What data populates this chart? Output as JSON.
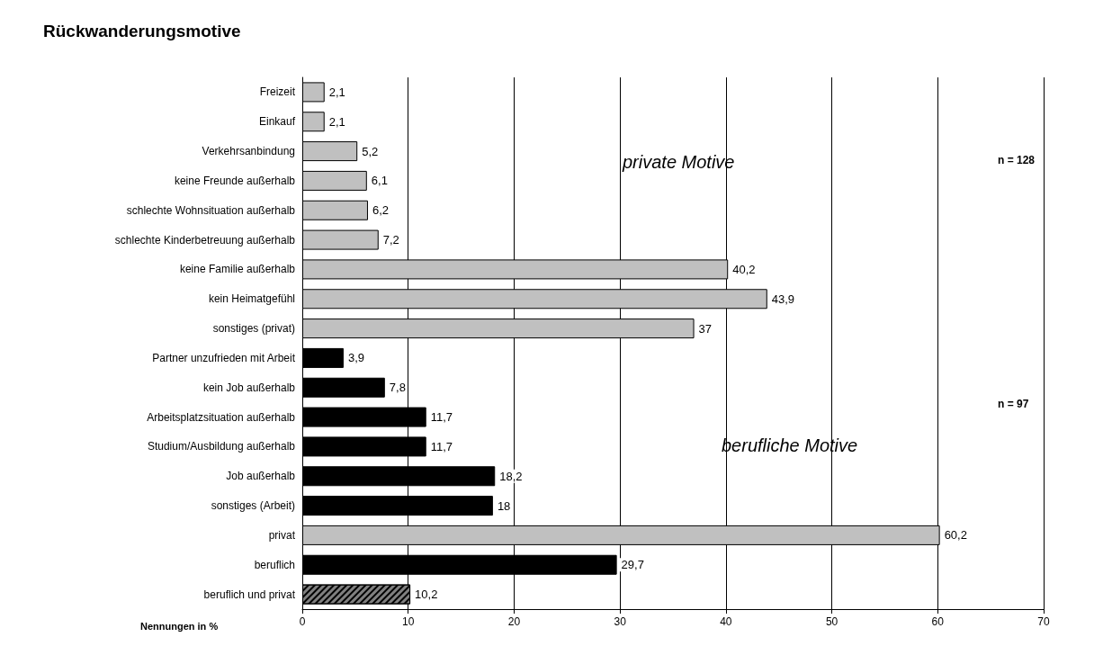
{
  "chart_data": {
    "type": "bar",
    "orientation": "horizontal",
    "title": "Rückwanderungsmotive",
    "xlabel": "Nennungen in %",
    "categories": [
      "Freizeit",
      "Einkauf",
      "Verkehrsanbindung",
      "keine Freunde außerhalb",
      "schlechte Wohnsituation außerhalb",
      "schlechte Kinderbetreuung außerhalb",
      "keine Familie außerhalb",
      "kein Heimatgefühl",
      "sonstiges (privat)",
      "Partner unzufrieden mit Arbeit",
      "kein Job außerhalb",
      "Arbeitsplatzsituation außerhalb",
      "Studium/Ausbildung außerhalb",
      "Job außerhalb",
      "sonstiges (Arbeit)",
      "privat",
      "beruflich",
      "beruflich und privat"
    ],
    "values": [
      2.1,
      2.1,
      5.2,
      6.1,
      6.2,
      7.2,
      40.2,
      43.9,
      37,
      3.9,
      7.8,
      11.7,
      11.7,
      18.2,
      18,
      60.2,
      29.7,
      10.2
    ],
    "value_labels": [
      "2,1",
      "2,1",
      "5,2",
      "6,1",
      "6,2",
      "7,2",
      "40,2",
      "43,9",
      "37",
      "3,9",
      "7,8",
      "11,7",
      "11,7",
      "18,2",
      "18",
      "60,2",
      "29,7",
      "10,2"
    ],
    "colors": [
      "#c0c0c0",
      "#c0c0c0",
      "#c0c0c0",
      "#c0c0c0",
      "#c0c0c0",
      "#c0c0c0",
      "#c0c0c0",
      "#c0c0c0",
      "#c0c0c0",
      "#000000",
      "#000000",
      "#000000",
      "#000000",
      "#000000",
      "#000000",
      "#c0c0c0",
      "#000000",
      "#808080"
    ],
    "xlim": [
      0,
      70
    ],
    "xticks": [
      0,
      10,
      20,
      30,
      40,
      50,
      60,
      70
    ],
    "grid": "x",
    "annotations": [
      "private Motive",
      "berufliche Motive",
      "n = 128",
      "n = 97"
    ]
  }
}
